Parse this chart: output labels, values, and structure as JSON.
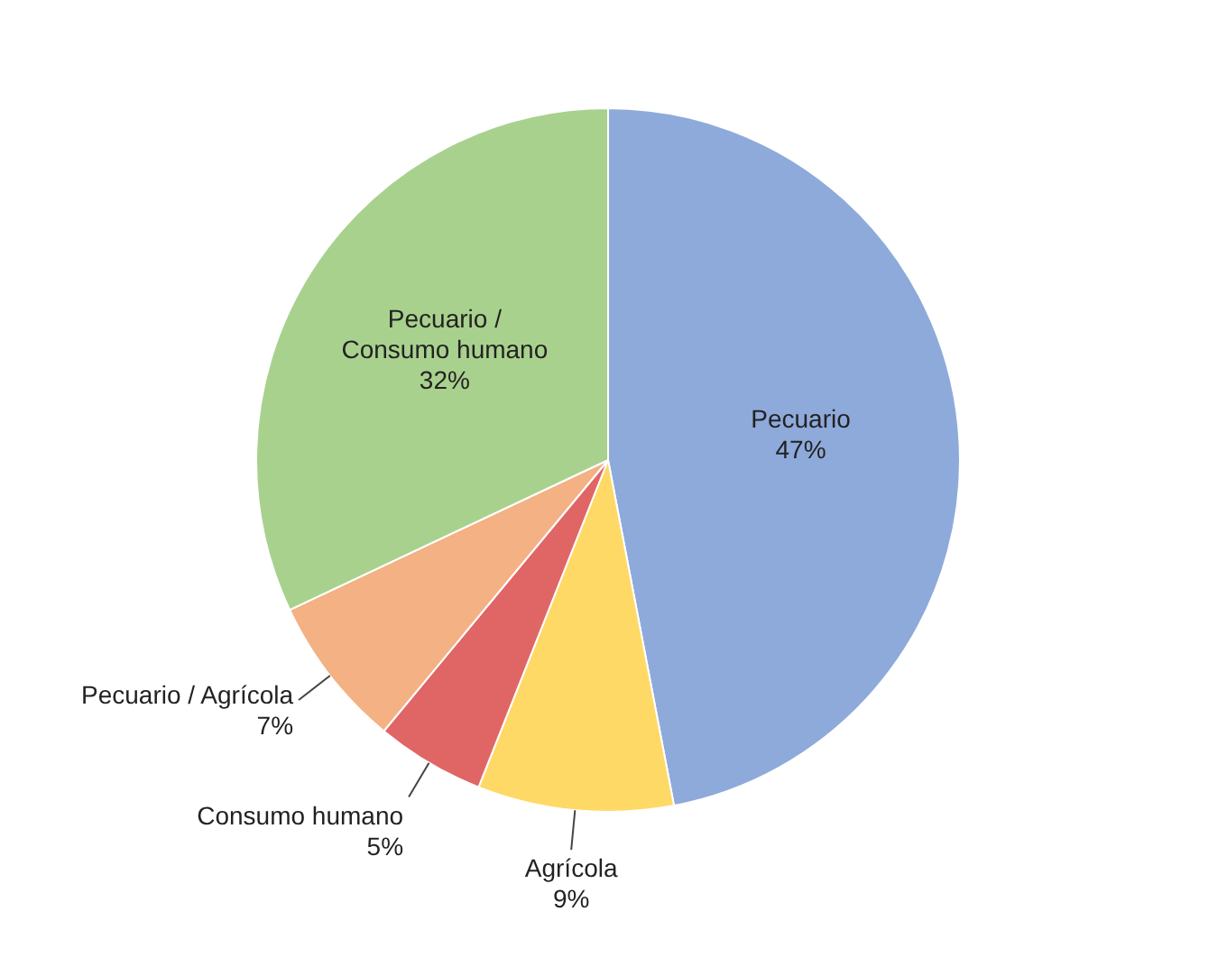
{
  "chart_data": {
    "type": "pie",
    "categories": [
      "Pecuario",
      "Agrícola",
      "Consumo humano",
      "Pecuario / Agrícola",
      "Pecuario / Consumo humano"
    ],
    "values": [
      47,
      9,
      5,
      7,
      32
    ],
    "colors": [
      "#8eaadb",
      "#ffd966",
      "#e06666",
      "#f4b183",
      "#a9d18e"
    ],
    "value_labels": [
      "47%",
      "9%",
      "5%",
      "7%",
      "32%"
    ]
  }
}
